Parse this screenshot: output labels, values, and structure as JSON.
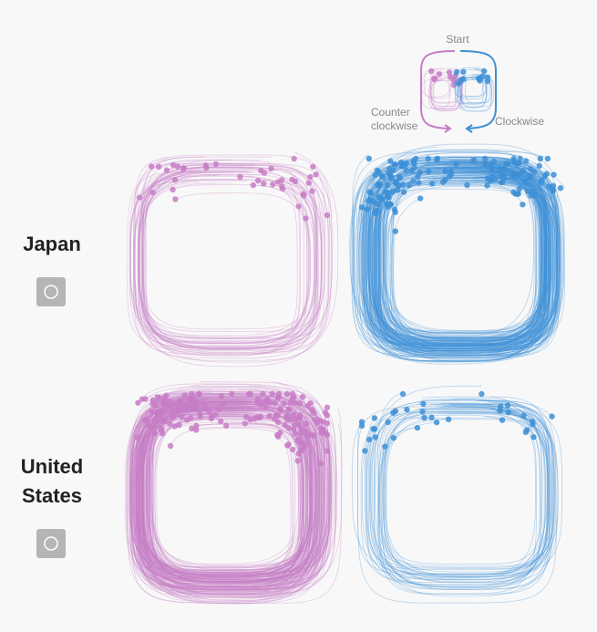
{
  "legend": {
    "start": "Start",
    "counter": [
      "Counter",
      "clockwise"
    ],
    "clockwise": "Clockwise"
  },
  "rows": [
    {
      "label": [
        "Japan"
      ]
    },
    {
      "label": [
        "United",
        "States"
      ]
    }
  ]
}
